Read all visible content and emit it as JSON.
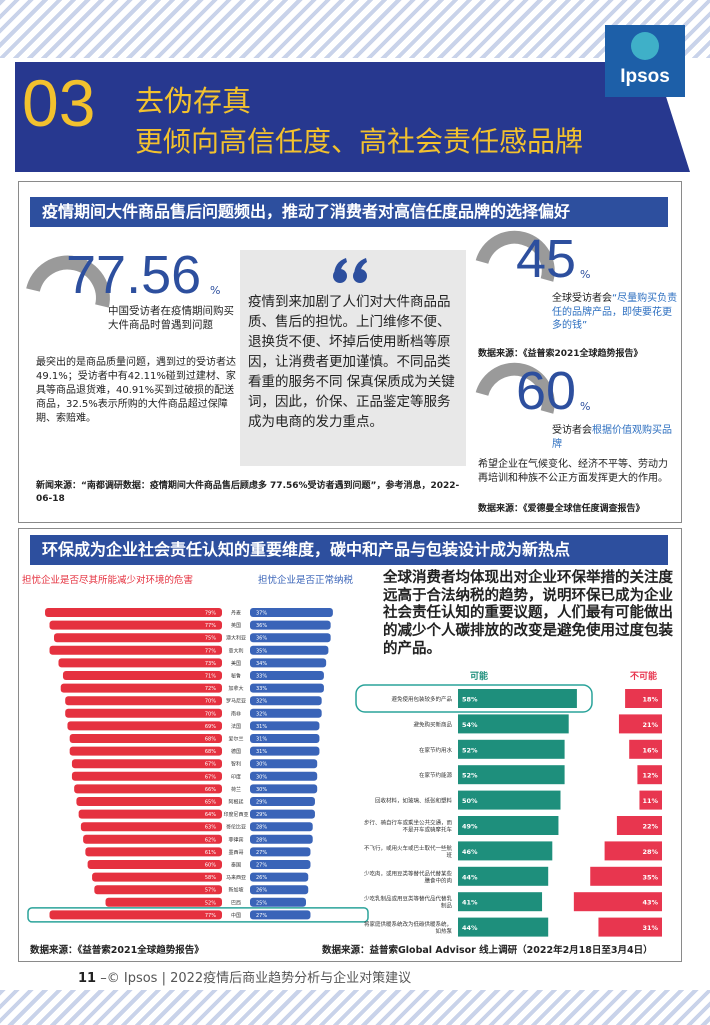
{
  "header": {
    "logo": "Ipsos",
    "number": "03",
    "title": "去伪存真",
    "subtitle": "更倾向高信任度、高社会责任感品牌"
  },
  "section1": {
    "heading": "疫情期间大件商品售后问题频出，推动了消费者对高信任度品牌的选择偏好",
    "stat_main": {
      "value": 77.56,
      "unit": "%",
      "caption": "中国受访者在疫情期间购买大件商品时曾遇到问题",
      "detail": "最突出的是商品质量问题，遇到过的受访者达49.1%；受访者中有42.11%碰到过建材、家具等商品退货难，40.91%买到过破损的配送商品，32.5%表示所购的大件商品超过保障期、索赔难。"
    },
    "quote": "疫情到来加剧了人们对大件商品品质、售后的担忧。上门维修不便、退换货不便、坏掉后使用断档等原因，让消费者更加谨慎。不同品类看重的服务不同 保真保质成为关键词，因此，价保、正品鉴定等服务成为电商的发力重点。",
    "stat_a": {
      "value": 45,
      "unit": "%",
      "caption": "全球受访者会",
      "highlight": "“尽量购买负责任的品牌产品，即使要花更多的钱”",
      "source": "数据来源：《益普索2021全球趋势报告》"
    },
    "stat_b": {
      "value": 60,
      "unit": "%",
      "caption": "受访者会",
      "highlight": "根据价值观购买品牌",
      "note": "希望企业在气候变化、经济不平等、劳动力再培训和种族不公正方面发挥更大的作用。",
      "source": "数据来源：《爱德曼全球信任度调查报告》"
    },
    "news_source": "新闻来源：“南都调研数据：疫情期间大件商品售后顾虑多 77.56%受访者遇到问题”，参考消息，2022-06-18"
  },
  "section2": {
    "heading": "环保成为企业社会责任认知的重要维度，碳中和产品与包装设计成为新热点",
    "summary": "全球消费者均体现出对企业环保举措的关注度远高于合法纳税的趋势，说明环保已成为企业社会责任认知的重要议题，人们最有可能做出的减少个人碳排放的改变是避免使用过度包装的产品。",
    "source_left": "数据来源：《益普索2021全球趋势报告》",
    "source_right": "数据来源：益普索Global Advisor 线上调研（2022年2月18日至3月4日）"
  },
  "chart_data": [
    {
      "type": "butterfly",
      "categories": [
        "丹麦",
        "英国",
        "澳大利亚",
        "意大利",
        "美国",
        "秘鲁",
        "加拿大",
        "罗马尼亚",
        "南非",
        "法国",
        "爱尔兰",
        "德国",
        "智利",
        "印度",
        "荷兰",
        "阿根廷",
        "印度尼西亚",
        "哥伦比亚",
        "菲律宾",
        "墨西哥",
        "泰国",
        "马来西亚",
        "新加坡",
        "巴西",
        "中国"
      ],
      "series": [
        {
          "name": "担忧企业是否尽其所能减少对环境的危害",
          "color": "#e5313f",
          "values": [
            79,
            77,
            75,
            77,
            73,
            71,
            72,
            70,
            70,
            69,
            68,
            68,
            67,
            67,
            66,
            65,
            64,
            63,
            62,
            61,
            60,
            58,
            57,
            52,
            77
          ],
          "value_labels": [
            "79%",
            "77%",
            "75%",
            "77%",
            "73%",
            "71%",
            "72%",
            "70%",
            "70%",
            "69%",
            "68%",
            "68%",
            "67%",
            "67%",
            "66%",
            "65%",
            "64%",
            "63%",
            "62%",
            "61%",
            "60%",
            "58%",
            "57%",
            "52%",
            "77%"
          ]
        },
        {
          "name": "担忧企业是否正常纳税",
          "color": "#3a64b8",
          "values": [
            37,
            36,
            36,
            35,
            34,
            33,
            33,
            32,
            32,
            31,
            31,
            31,
            30,
            30,
            30,
            29,
            29,
            28,
            28,
            27,
            27,
            26,
            26,
            25,
            27
          ],
          "value_labels": [
            "37%",
            "36%",
            "36%",
            "35%",
            "34%",
            "33%",
            "33%",
            "32%",
            "32%",
            "31%",
            "31%",
            "31%",
            "30%",
            "30%",
            "30%",
            "29%",
            "29%",
            "28%",
            "28%",
            "27%",
            "27%",
            "26%",
            "26%",
            "25%",
            "27%"
          ]
        }
      ],
      "xlim": [
        0,
        100
      ],
      "highlight_index": 24
    },
    {
      "type": "diverging",
      "categories": [
        "避免使用包装较多的产品",
        "避免购买新商品",
        "在家节约用水",
        "在家节约能源",
        "回收材料，如玻璃、纸张和塑料",
        "步行、骑自行车或乘坐公共交通，而不是开车或骑摩托车",
        "不飞行，或用火车或巴士取代一些航班",
        "少吃肉，或用豆类等替代品代替某些膳食中的肉",
        "少吃乳制品或用豆类等替代品代替乳制品",
        "将家庭供暖系统改为低碳供暖系统，如热泵"
      ],
      "series": [
        {
          "name": "可能",
          "color": "#1e8f7c",
          "values": [
            58,
            54,
            52,
            52,
            50,
            49,
            46,
            44,
            41,
            44
          ],
          "value_labels": [
            "58%",
            "54%",
            "52%",
            "52%",
            "50%",
            "49%",
            "46%",
            "44%",
            "41%",
            "44%"
          ]
        },
        {
          "name": "不可能",
          "color": "#e8364f",
          "values": [
            18,
            21,
            16,
            12,
            11,
            22,
            28,
            35,
            43,
            31
          ],
          "value_labels": [
            "18%",
            "21%",
            "16%",
            "12%",
            "11%",
            "22%",
            "28%",
            "35%",
            "43%",
            "31%"
          ]
        }
      ],
      "xlim": [
        0,
        100
      ],
      "highlight_index": 0
    }
  ],
  "footer": {
    "page": "11",
    "text": "–© Ipsos | 2022疫情后商业趋势分析与企业对策建议"
  }
}
